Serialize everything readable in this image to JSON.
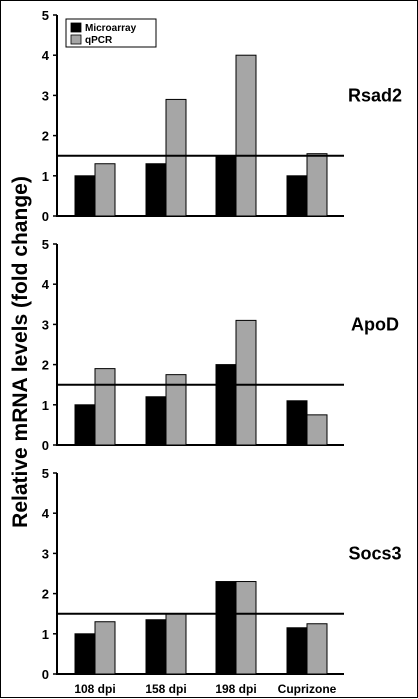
{
  "y_axis_label": "Relative mRNA levels (fold change)",
  "legend": [
    "Microarray",
    "qPCR"
  ],
  "colors": {
    "Microarray": "#000000",
    "qPCR": "#a6a6a6"
  },
  "chart_data": [
    {
      "type": "bar",
      "title": "Rsad2",
      "categories": [
        "108 dpi",
        "158 dpi",
        "198 dpi",
        "Cuprizone"
      ],
      "series": [
        {
          "name": "Microarray",
          "values": [
            1.0,
            1.3,
            1.5,
            1.0
          ]
        },
        {
          "name": "qPCR",
          "values": [
            1.3,
            2.9,
            4.0,
            1.55
          ]
        }
      ],
      "ylim": [
        0,
        5
      ],
      "yticks": [
        "0",
        "1",
        "2",
        "3",
        "4",
        "5"
      ],
      "threshold": 1.5,
      "legend_position": "top-left"
    },
    {
      "type": "bar",
      "title": "ApoD",
      "categories": [
        "108 dpi",
        "158 dpi",
        "198 dpi",
        "Cuprizone"
      ],
      "series": [
        {
          "name": "Microarray",
          "values": [
            1.0,
            1.2,
            2.0,
            1.1
          ]
        },
        {
          "name": "qPCR",
          "values": [
            1.9,
            1.75,
            3.1,
            0.75
          ]
        }
      ],
      "ylim": [
        0,
        5
      ],
      "yticks": [
        "0",
        "1",
        "2",
        "3",
        "4",
        "5"
      ],
      "threshold": 1.5
    },
    {
      "type": "bar",
      "title": "Socs3",
      "categories": [
        "108 dpi",
        "158 dpi",
        "198 dpi",
        "Cuprizone"
      ],
      "series": [
        {
          "name": "Microarray",
          "values": [
            1.0,
            1.35,
            2.3,
            1.15
          ]
        },
        {
          "name": "qPCR",
          "values": [
            1.3,
            1.5,
            2.3,
            1.25
          ]
        }
      ],
      "ylim": [
        0,
        5
      ],
      "yticks": [
        "0",
        "1",
        "2",
        "3",
        "4",
        "5"
      ],
      "threshold": 1.5,
      "show_xticklabels": true
    }
  ]
}
